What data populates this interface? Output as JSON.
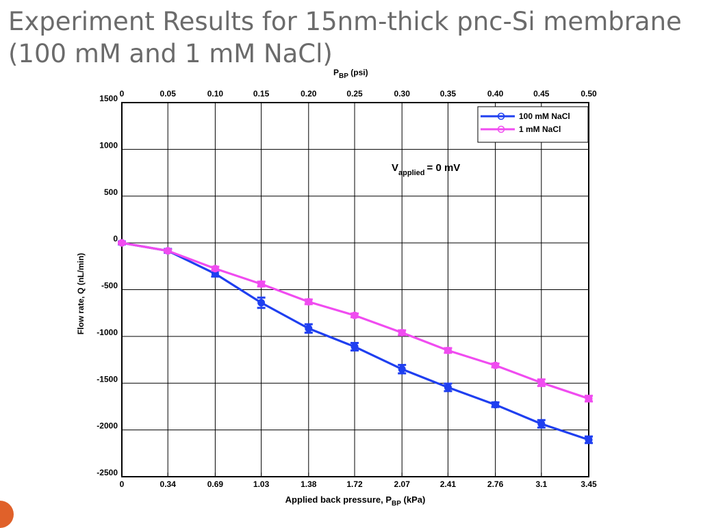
{
  "slide": {
    "title_line1": "Experiment Results for 15nm-thick pnc-Si membrane",
    "title_line2": "(100 mM and 1 mM NaCl)"
  },
  "chart_data": {
    "type": "line",
    "x": [
      0,
      0.34,
      0.69,
      1.03,
      1.38,
      1.72,
      2.07,
      2.41,
      2.76,
      3.1,
      3.45
    ],
    "x_tick_labels": [
      "0",
      "0.34",
      "0.69",
      "1.03",
      "1.38",
      "1.72",
      "2.07",
      "2.41",
      "2.76",
      "3.1",
      "3.45"
    ],
    "top_axis_tick_labels": [
      "0",
      "0.05",
      "0.10",
      "0.15",
      "0.20",
      "0.25",
      "0.30",
      "0.35",
      "0.40",
      "0.45",
      "0.50"
    ],
    "xlim": [
      0,
      3.45
    ],
    "ylim": [
      -2500,
      1500
    ],
    "y_ticks": [
      1500,
      1000,
      500,
      0,
      -500,
      -1000,
      -1500,
      -2000,
      -2500
    ],
    "xlabel": "Applied back pressure, P",
    "xlabel_sub": "BP",
    "xlabel_unit": " (kPa)",
    "ylabel": "Flow rate, Q (nL/min)",
    "top_xlabel": "P",
    "top_xlabel_sub": "BP",
    "top_xlabel_unit": " (psi)",
    "annotation": {
      "main": "V",
      "sub": "applied",
      "rest": "= 0 mV"
    },
    "grid": true,
    "legend_position": "top-right",
    "series": [
      {
        "name": "100 mM NaCl",
        "color": "#1f3ff0",
        "values": [
          0,
          -85,
          -330,
          -640,
          -915,
          -1110,
          -1350,
          -1545,
          -1730,
          -1935,
          -2105
        ],
        "errors": [
          15,
          20,
          30,
          55,
          45,
          40,
          45,
          40,
          25,
          40,
          35
        ]
      },
      {
        "name": "1 mM NaCl",
        "color": "#f04cf0",
        "values": [
          0,
          -85,
          -275,
          -440,
          -630,
          -775,
          -960,
          -1150,
          -1310,
          -1495,
          -1665
        ],
        "errors": [
          10,
          15,
          20,
          25,
          25,
          20,
          25,
          25,
          20,
          35,
          30
        ]
      }
    ]
  }
}
